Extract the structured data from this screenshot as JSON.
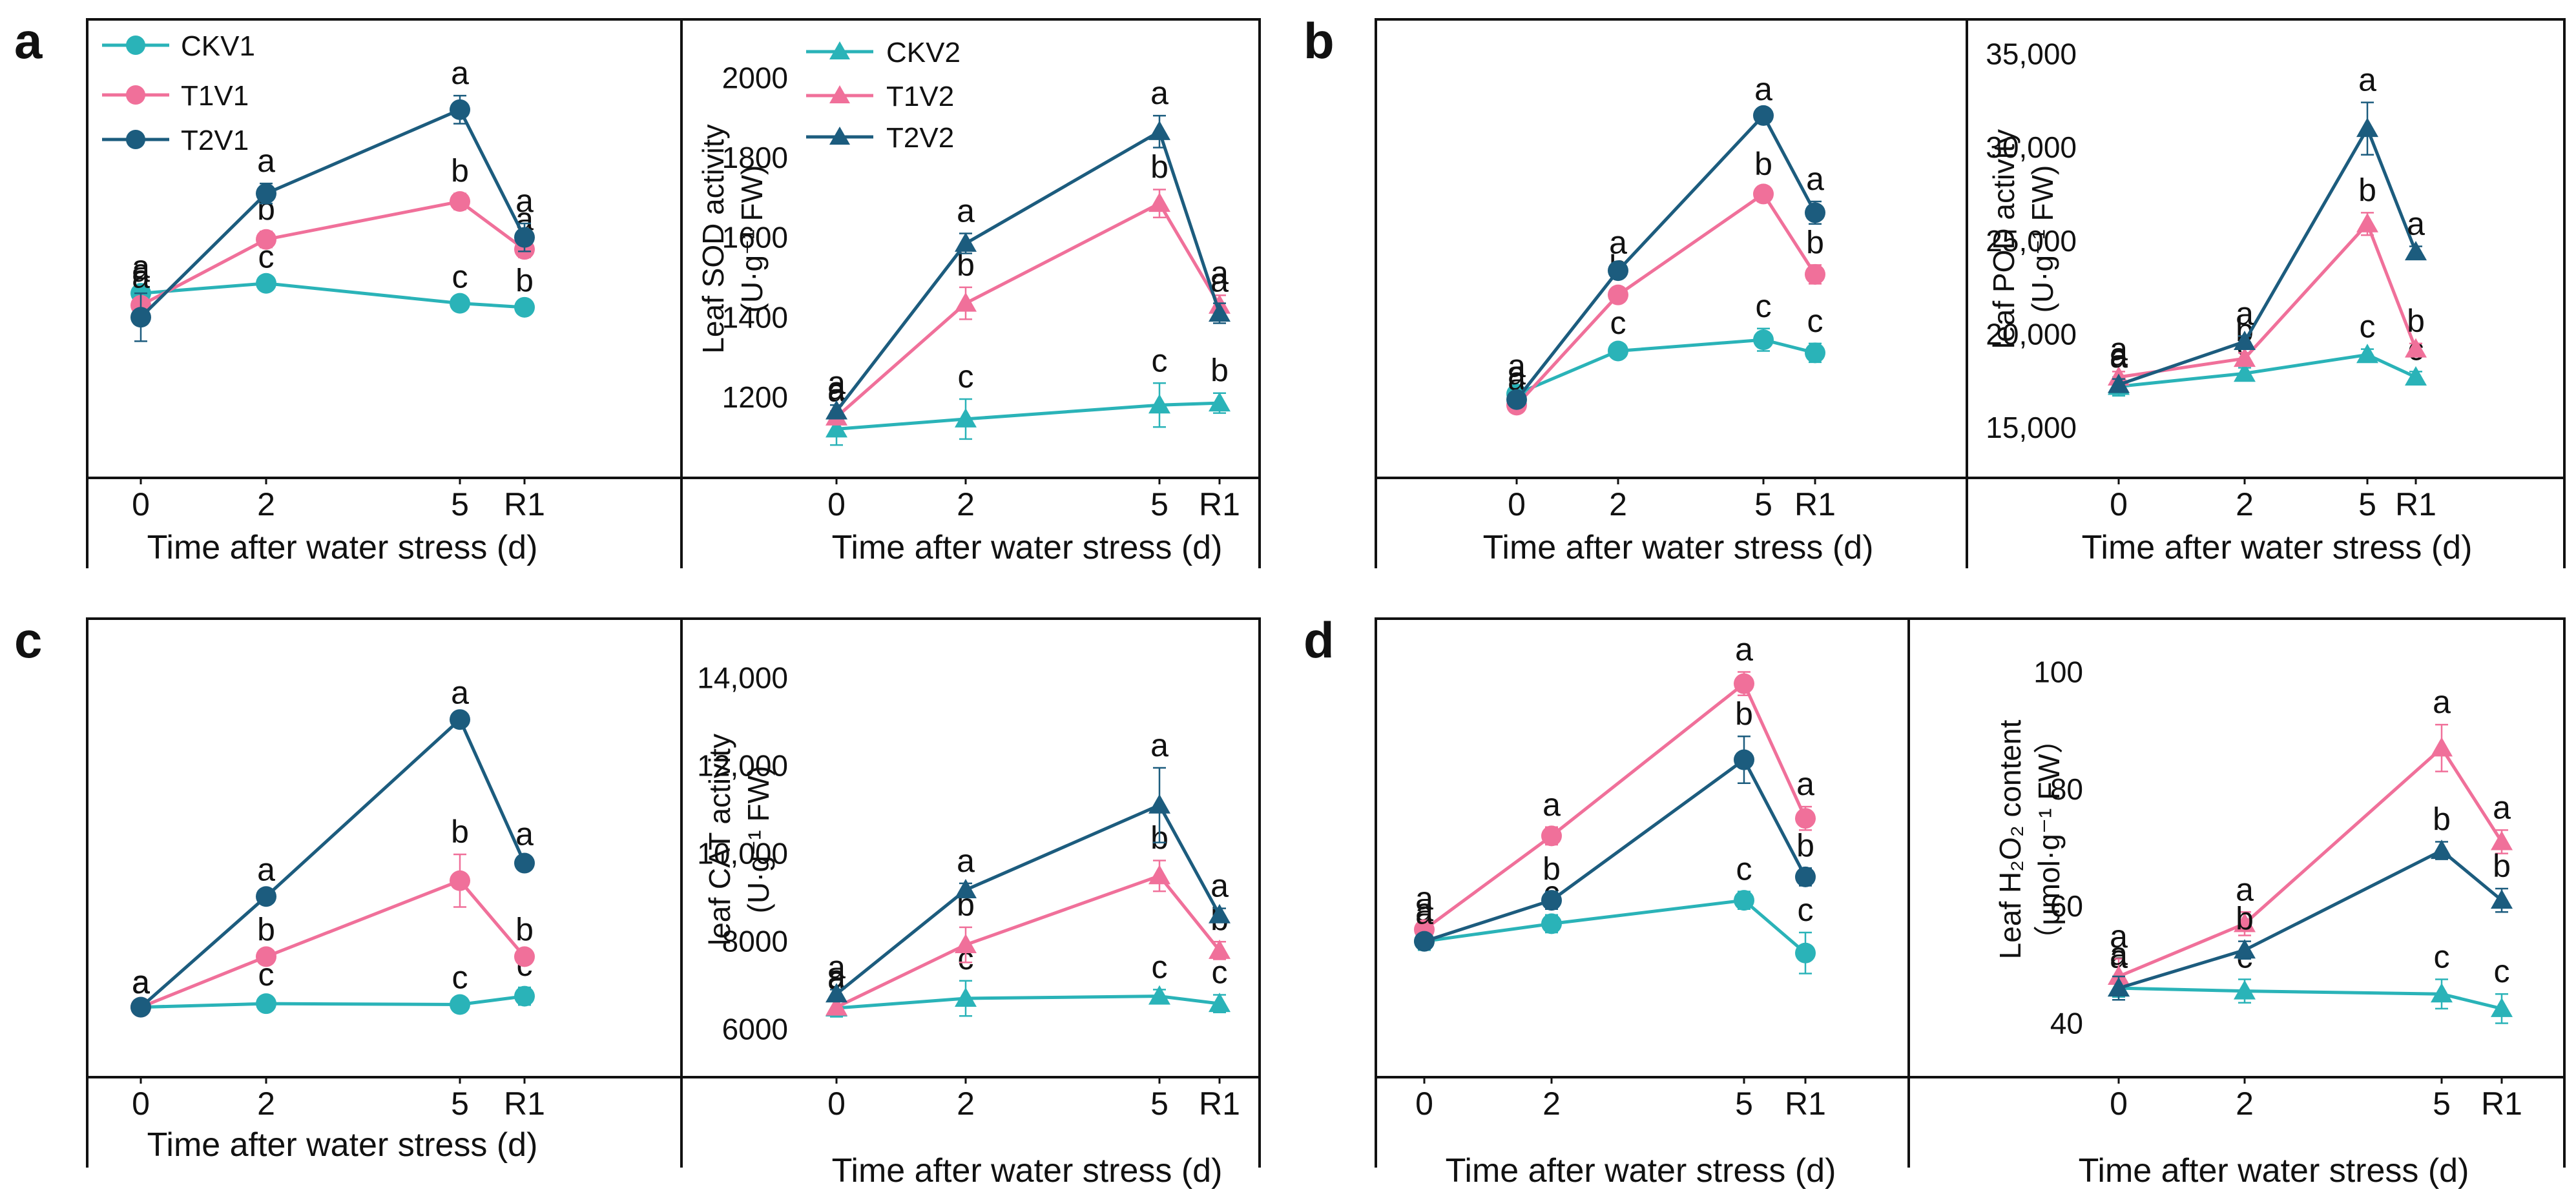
{
  "figure": {
    "x_ticks": [
      "0",
      "2",
      "5",
      "R1"
    ],
    "x_label": "Time after water stress (d)",
    "legend_v1": [
      {
        "name": "CKV1",
        "color": "#2ab3b8",
        "marker": "circle"
      },
      {
        "name": "T1V1",
        "color": "#f0709a",
        "marker": "circle"
      },
      {
        "name": "T2V1",
        "color": "#1c5c7e",
        "marker": "circle"
      }
    ],
    "legend_v2": [
      {
        "name": "CKV2",
        "color": "#2ab3b8",
        "marker": "triangle"
      },
      {
        "name": "T1V2",
        "color": "#f0709a",
        "marker": "triangle"
      },
      {
        "name": "T2V2",
        "color": "#1c5c7e",
        "marker": "triangle"
      }
    ]
  },
  "chart_data": [
    {
      "panel": "a",
      "type": "line",
      "x": [
        "0",
        "2",
        "5",
        "R1"
      ],
      "ylabel_main": "Leaf SOD activity",
      "ylabel_unit": "(U·g⁻¹ FW)",
      "ylim": [
        1030,
        2130
      ],
      "yticks": [
        "1200",
        "1400",
        "1600",
        "1800",
        "2000"
      ],
      "ytick_values": [
        1200,
        1400,
        1600,
        1800,
        2000
      ],
      "v1": [
        {
          "name": "CKV1",
          "values": [
            1460,
            1485,
            1435,
            1425
          ],
          "err": [
            10,
            10,
            10,
            10
          ],
          "letters": [
            "a",
            "c",
            "c",
            "b"
          ]
        },
        {
          "name": "T1V1",
          "values": [
            1430,
            1595,
            1690,
            1570
          ],
          "err": [
            15,
            20,
            20,
            20
          ],
          "letters": [
            "a",
            "b",
            "b",
            "a"
          ]
        },
        {
          "name": "T2V1",
          "values": [
            1400,
            1710,
            1920,
            1600
          ],
          "err": [
            60,
            25,
            35,
            35
          ],
          "letters": [
            "a",
            "a",
            "a",
            "a"
          ]
        }
      ],
      "v2": [
        {
          "name": "CKV2",
          "values": [
            1120,
            1145,
            1180,
            1185
          ],
          "err": [
            40,
            50,
            55,
            25
          ],
          "letters": [
            "a",
            "c",
            "c",
            "b"
          ]
        },
        {
          "name": "T1V2",
          "values": [
            1150,
            1435,
            1685,
            1430
          ],
          "err": [
            15,
            40,
            35,
            25
          ],
          "letters": [
            "a",
            "b",
            "b",
            "a"
          ]
        },
        {
          "name": "T2V2",
          "values": [
            1165,
            1585,
            1865,
            1410
          ],
          "err": [
            15,
            25,
            40,
            25
          ],
          "letters": [
            "a",
            "a",
            "a",
            "a"
          ]
        }
      ]
    },
    {
      "panel": "b",
      "type": "line",
      "x": [
        "0",
        "2",
        "5",
        "R1"
      ],
      "ylabel_main": "leaf POD activity",
      "ylabel_unit": "(U·g⁻¹ FW)",
      "ylim": [
        13000,
        36500
      ],
      "yticks": [
        "15,000",
        "20,000",
        "25,000",
        "30,000",
        "35,000"
      ],
      "ytick_values": [
        15000,
        20000,
        25000,
        30000,
        35000
      ],
      "v1": [
        {
          "name": "CKV1",
          "values": [
            16800,
            19100,
            19700,
            19000
          ],
          "err": [
            300,
            300,
            600,
            500
          ],
          "letters": [
            "a",
            "c",
            "c",
            "c"
          ]
        },
        {
          "name": "T1V1",
          "values": [
            16200,
            22100,
            27500,
            23200
          ],
          "err": [
            200,
            300,
            400,
            500
          ],
          "letters": [
            "a",
            "b",
            "b",
            "b"
          ]
        },
        {
          "name": "T2V1",
          "values": [
            16500,
            23400,
            31700,
            26500
          ],
          "err": [
            200,
            300,
            200,
            600
          ],
          "letters": [
            "a",
            "a",
            "a",
            "a"
          ]
        }
      ],
      "v2": [
        {
          "name": "CKV2",
          "values": [
            17200,
            17900,
            18900,
            17700
          ],
          "err": [
            500,
            300,
            300,
            300
          ],
          "letters": [
            "a",
            "c",
            "c",
            "c"
          ]
        },
        {
          "name": "T1V2",
          "values": [
            17700,
            18700,
            25900,
            19200
          ],
          "err": [
            300,
            300,
            600,
            300
          ],
          "letters": [
            "a",
            "b",
            "b",
            "b"
          ]
        },
        {
          "name": "T2V2",
          "values": [
            17300,
            19600,
            31000,
            24400
          ],
          "err": [
            300,
            300,
            1400,
            300
          ],
          "letters": [
            "a",
            "a",
            "a",
            "a"
          ]
        }
      ]
    },
    {
      "panel": "c",
      "type": "line",
      "x": [
        "0",
        "2",
        "5",
        "R1"
      ],
      "ylabel_main": "leaf CAT activity",
      "ylabel_unit": "(U·g⁻¹ FW)",
      "ylim": [
        5200,
        15200
      ],
      "yticks": [
        "6000",
        "8000",
        "10,000",
        "12,000",
        "14,000"
      ],
      "ytick_values": [
        6000,
        8000,
        10000,
        12000,
        14000
      ],
      "v1": [
        {
          "name": "CKV1",
          "values": [
            6500,
            6580,
            6560,
            6750
          ],
          "err": [
            60,
            150,
            100,
            200
          ],
          "letters": [
            "a",
            "c",
            "c",
            "c"
          ]
        },
        {
          "name": "T1V1",
          "values": [
            6500,
            7650,
            9380,
            7650
          ],
          "err": [
            50,
            100,
            600,
            100
          ],
          "letters": [
            "a",
            "b",
            "b",
            "b"
          ]
        },
        {
          "name": "T2V1",
          "values": [
            6500,
            9020,
            13050,
            9780
          ],
          "err": [
            50,
            100,
            100,
            150
          ],
          "letters": [
            "a",
            "a",
            "a",
            "a"
          ]
        }
      ],
      "v2": [
        {
          "name": "CKV2",
          "values": [
            6480,
            6700,
            6750,
            6580
          ],
          "err": [
            200,
            400,
            150,
            200
          ],
          "letters": [
            "a",
            "c",
            "c",
            "c"
          ]
        },
        {
          "name": "T1V2",
          "values": [
            6500,
            7920,
            9490,
            7790
          ],
          "err": [
            150,
            400,
            350,
            200
          ],
          "letters": [
            "a",
            "b",
            "b",
            "b"
          ]
        },
        {
          "name": "T2V2",
          "values": [
            6800,
            9170,
            11100,
            8600
          ],
          "err": [
            100,
            150,
            850,
            150
          ],
          "letters": [
            "a",
            "a",
            "a",
            "a"
          ]
        }
      ]
    },
    {
      "panel": "d",
      "type": "line",
      "x": [
        "0",
        "2",
        "5",
        "R1"
      ],
      "ylabel_main": "Leaf H₂O₂ content",
      "ylabel_unit": "（μmol·g⁻¹ FW）",
      "ylim": [
        33,
        108
      ],
      "yticks": [
        "40",
        "60",
        "80",
        "100"
      ],
      "ytick_values": [
        40,
        60,
        80,
        100
      ],
      "v1": [
        {
          "name": "CKV1",
          "values": [
            54,
            57,
            61,
            52
          ],
          "err": [
            1.5,
            1.5,
            1.5,
            3.5
          ],
          "letters": [
            "a",
            "c",
            "c",
            "c"
          ]
        },
        {
          "name": "T1V1",
          "values": [
            56,
            72,
            98,
            75
          ],
          "err": [
            1.5,
            1.5,
            2,
            2
          ],
          "letters": [
            "a",
            "a",
            "a",
            "a"
          ]
        },
        {
          "name": "T2V1",
          "values": [
            54,
            61,
            85,
            65
          ],
          "err": [
            1,
            1.5,
            4,
            1.5
          ],
          "letters": [
            "a",
            "b",
            "b",
            "b"
          ]
        }
      ],
      "v2": [
        {
          "name": "CKV2",
          "values": [
            46,
            45.5,
            45,
            42.5
          ],
          "err": [
            1.5,
            2,
            2.5,
            2.5
          ],
          "letters": [
            "a",
            "c",
            "c",
            "c"
          ]
        },
        {
          "name": "T1V2",
          "values": [
            48,
            57,
            87,
            71
          ],
          "err": [
            3,
            2,
            4,
            2
          ],
          "letters": [
            "a",
            "a",
            "a",
            "a"
          ]
        },
        {
          "name": "T2V2",
          "values": [
            46,
            52.5,
            69.5,
            61
          ],
          "err": [
            2,
            1.5,
            1.5,
            2
          ],
          "letters": [
            "a",
            "b",
            "b",
            "b"
          ]
        }
      ]
    }
  ]
}
